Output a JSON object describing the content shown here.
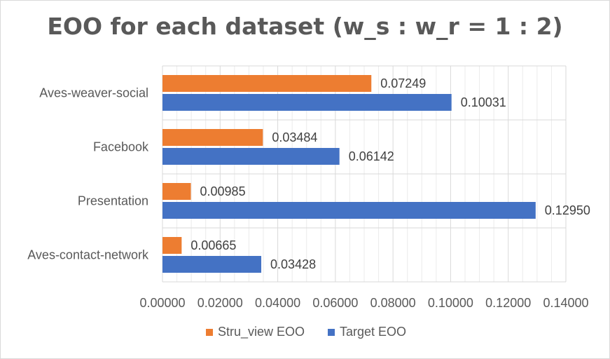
{
  "chart_data": {
    "type": "bar",
    "orientation": "horizontal",
    "title": "EOO for each dataset (w_s : w_r = 1 : 2)",
    "categories": [
      "Aves-weaver-social",
      "Facebook",
      "Presentation",
      "Aves-contact-network"
    ],
    "series": [
      {
        "name": "Stru_view EOO",
        "color": "#ED7D31",
        "values": [
          0.07249,
          0.03484,
          0.00985,
          0.00665
        ],
        "labels": [
          "0.07249",
          "0.03484",
          "0.00985",
          "0.00665"
        ]
      },
      {
        "name": "Target EOO",
        "color": "#4472C4",
        "values": [
          0.10031,
          0.06142,
          0.1295,
          0.03428
        ],
        "labels": [
          "0.10031",
          "0.06142",
          "0.12950",
          "0.03428"
        ]
      }
    ],
    "xlim": [
      0,
      0.14
    ],
    "xticks": [
      "0.00000",
      "0.02000",
      "0.04000",
      "0.06000",
      "0.08000",
      "0.10000",
      "0.12000",
      "0.14000"
    ],
    "grid": true,
    "legend": "bottom"
  }
}
